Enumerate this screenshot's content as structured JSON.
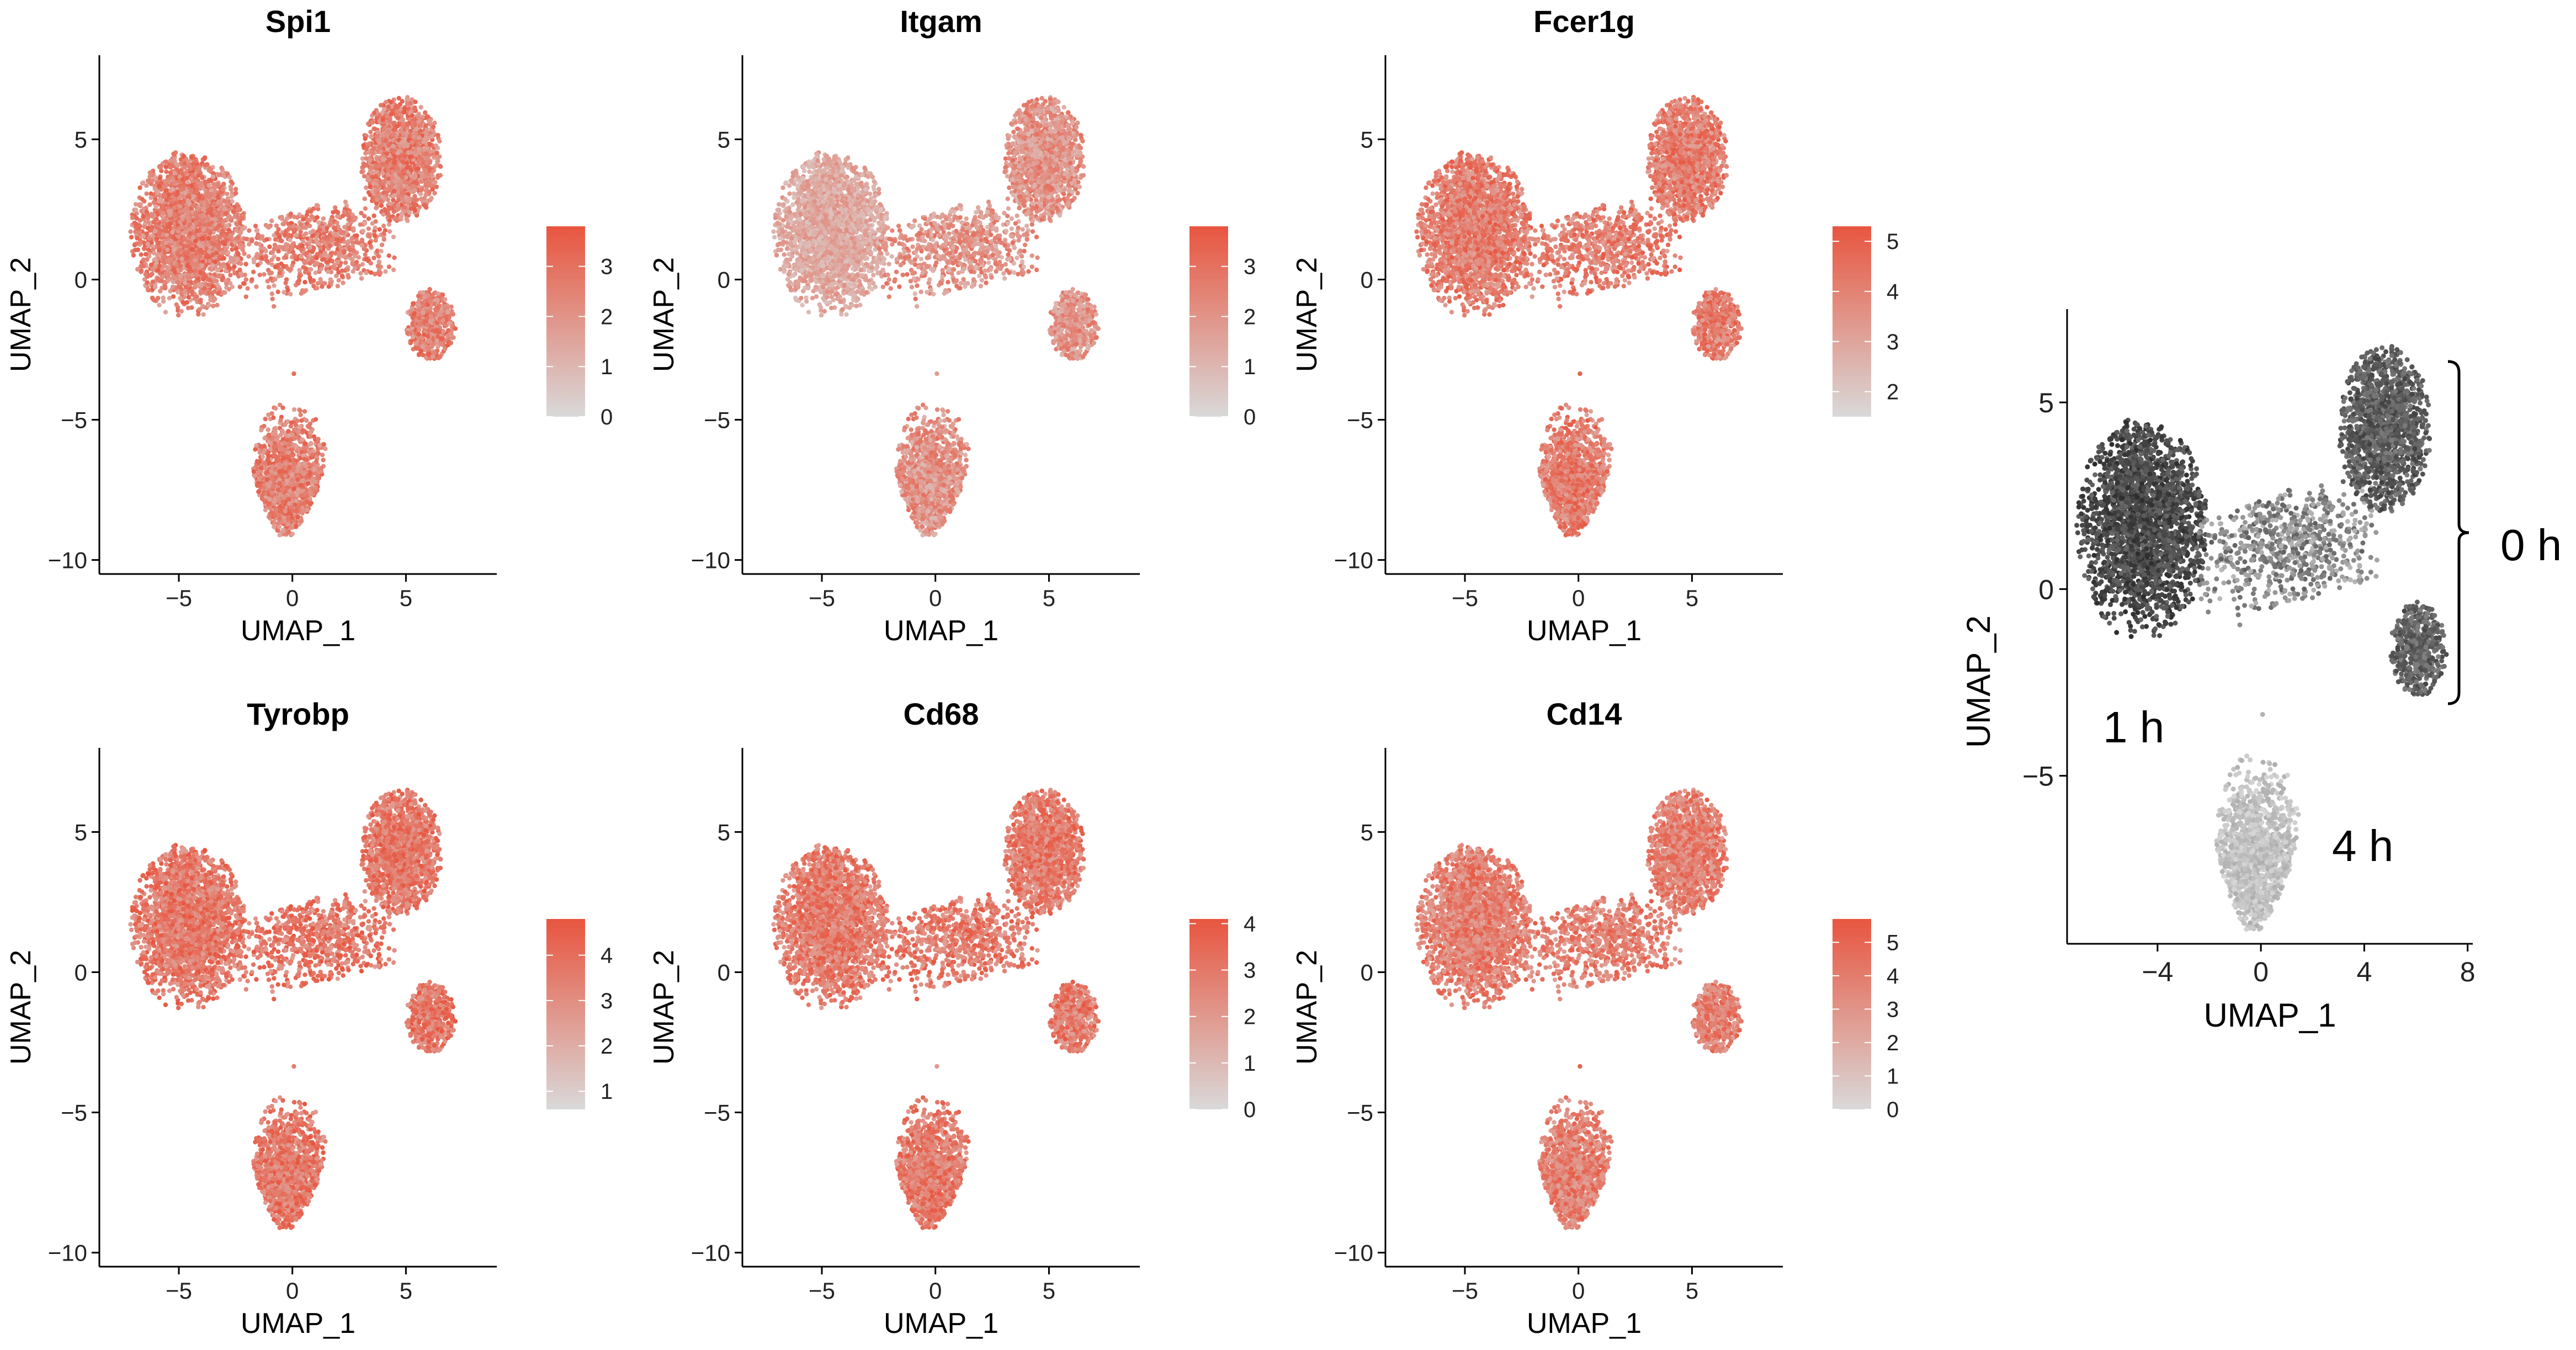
{
  "figure": {
    "panels": [
      {
        "title": "Spi1",
        "xlabel": "UMAP_1",
        "ylabel": "UMAP_2",
        "legend": {
          "ticks": [
            "0",
            "1",
            "2",
            "3"
          ],
          "min": 0,
          "max": 3.8
        },
        "level": 0.7
      },
      {
        "title": "Itgam",
        "xlabel": "UMAP_1",
        "ylabel": "UMAP_2",
        "legend": {
          "ticks": [
            "0",
            "1",
            "2",
            "3"
          ],
          "min": 0,
          "max": 3.8
        },
        "level": 0.45
      },
      {
        "title": "Fcer1g",
        "xlabel": "UMAP_1",
        "ylabel": "UMAP_2",
        "legend": {
          "ticks": [
            "2",
            "3",
            "4",
            "5"
          ],
          "min": 1.5,
          "max": 5.3
        },
        "level": 0.75
      },
      {
        "title": "Tyrobp",
        "xlabel": "UMAP_1",
        "ylabel": "UMAP_2",
        "legend": {
          "ticks": [
            "1",
            "2",
            "3",
            "4"
          ],
          "min": 0.6,
          "max": 4.8
        },
        "level": 0.82
      },
      {
        "title": "Cd68",
        "xlabel": "UMAP_1",
        "ylabel": "UMAP_2",
        "legend": {
          "ticks": [
            "0",
            "1",
            "2",
            "3",
            "4"
          ],
          "min": 0,
          "max": 4.1
        },
        "level": 0.78
      },
      {
        "title": "Cd14",
        "xlabel": "UMAP_1",
        "ylabel": "UMAP_2",
        "legend": {
          "ticks": [
            "0",
            "1",
            "2",
            "3",
            "4",
            "5"
          ],
          "min": 0,
          "max": 5.7
        },
        "level": 0.72
      }
    ],
    "timepoint_panel": {
      "xlabel": "UMAP_1",
      "ylabel": "UMAP_2",
      "labels": {
        "h0": "0 h",
        "h1": "1 h",
        "h4": "4 h"
      }
    }
  },
  "chart_data": [
    {
      "type": "scatter",
      "title": "Spi1",
      "xlabel": "UMAP_1",
      "ylabel": "UMAP_2",
      "xlim": [
        -8.5,
        9
      ],
      "ylim": [
        -10.5,
        8
      ],
      "xticks": [
        -5,
        0,
        5
      ],
      "yticks": [
        -10,
        -5,
        0,
        5
      ],
      "color_scale": {
        "low": "#d9d9d9",
        "high": "#e8553f",
        "range": [
          0,
          3.8
        ],
        "ticks": [
          0,
          1,
          2,
          3
        ]
      },
      "clusters": [
        "left cluster (-5, 2)",
        "top-right cluster (5, 4.5)",
        "right cluster (6, -1.8)",
        "bottom cluster (-0.5, -7)"
      ]
    },
    {
      "type": "scatter",
      "title": "Itgam",
      "xlabel": "UMAP_1",
      "ylabel": "UMAP_2",
      "xlim": [
        -8.5,
        9
      ],
      "ylim": [
        -10.5,
        8
      ],
      "xticks": [
        -5,
        0,
        5
      ],
      "yticks": [
        -10,
        -5,
        0,
        5
      ],
      "color_scale": {
        "low": "#d9d9d9",
        "high": "#e8553f",
        "range": [
          0,
          3.8
        ],
        "ticks": [
          0,
          1,
          2,
          3
        ]
      }
    },
    {
      "type": "scatter",
      "title": "Fcer1g",
      "xlabel": "UMAP_1",
      "ylabel": "UMAP_2",
      "xlim": [
        -8.5,
        9
      ],
      "ylim": [
        -10.5,
        8
      ],
      "xticks": [
        -5,
        0,
        5
      ],
      "yticks": [
        -10,
        -5,
        0,
        5
      ],
      "color_scale": {
        "low": "#d9d9d9",
        "high": "#e8553f",
        "range": [
          1.5,
          5.3
        ],
        "ticks": [
          2,
          3,
          4,
          5
        ]
      }
    },
    {
      "type": "scatter",
      "title": "Tyrobp",
      "xlabel": "UMAP_1",
      "ylabel": "UMAP_2",
      "xlim": [
        -8.5,
        9
      ],
      "ylim": [
        -10.5,
        8
      ],
      "xticks": [
        -5,
        0,
        5
      ],
      "yticks": [
        -10,
        -5,
        0,
        5
      ],
      "color_scale": {
        "low": "#d9d9d9",
        "high": "#e8553f",
        "range": [
          0.6,
          4.8
        ],
        "ticks": [
          1,
          2,
          3,
          4
        ]
      }
    },
    {
      "type": "scatter",
      "title": "Cd68",
      "xlabel": "UMAP_1",
      "ylabel": "UMAP_2",
      "xlim": [
        -8.5,
        9
      ],
      "ylim": [
        -10.5,
        8
      ],
      "xticks": [
        -5,
        0,
        5
      ],
      "yticks": [
        -10,
        -5,
        0,
        5
      ],
      "color_scale": {
        "low": "#d9d9d9",
        "high": "#e8553f",
        "range": [
          0,
          4.1
        ],
        "ticks": [
          0,
          1,
          2,
          3,
          4
        ]
      }
    },
    {
      "type": "scatter",
      "title": "Cd14",
      "xlabel": "UMAP_1",
      "ylabel": "UMAP_2",
      "xlim": [
        -8.5,
        9
      ],
      "ylim": [
        -10.5,
        8
      ],
      "xticks": [
        -5,
        0,
        5
      ],
      "yticks": [
        -10,
        -5,
        0,
        5
      ],
      "color_scale": {
        "low": "#d9d9d9",
        "high": "#e8553f",
        "range": [
          0,
          5.7
        ],
        "ticks": [
          0,
          1,
          2,
          3,
          4,
          5
        ]
      }
    },
    {
      "type": "scatter",
      "title": "",
      "xlabel": "UMAP_1",
      "ylabel": "UMAP_2",
      "xlim": [
        -7.5,
        8.2
      ],
      "ylim": [
        -9.5,
        7.5
      ],
      "xticks": [
        -4,
        0,
        4,
        8
      ],
      "yticks": [
        -5,
        0,
        5
      ],
      "groups": [
        {
          "name": "0 h",
          "color": "#555555",
          "clusters": [
            "top-right",
            "right"
          ]
        },
        {
          "name": "1 h",
          "color": "#4a4a4a",
          "clusters": [
            "left"
          ]
        },
        {
          "name": "4 h",
          "color": "#c0c0c0",
          "clusters": [
            "bottom"
          ]
        }
      ]
    }
  ]
}
